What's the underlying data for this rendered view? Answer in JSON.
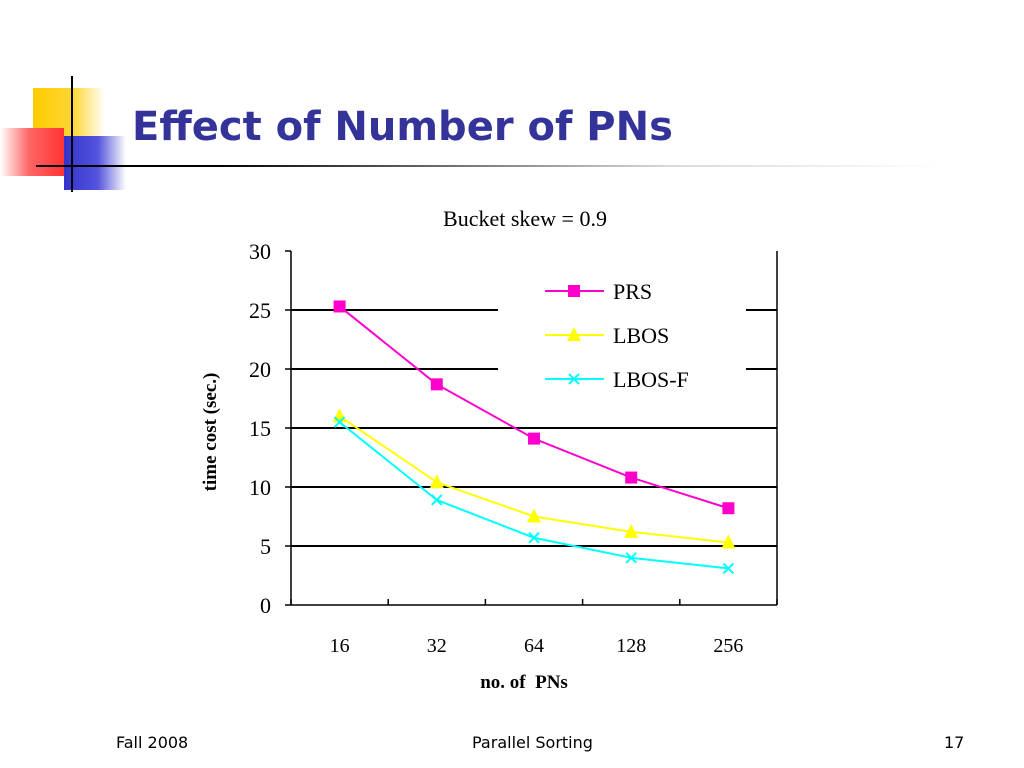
{
  "slide": {
    "title": "Effect of Number of PNs",
    "footer_left": "Fall 2008",
    "footer_center": "Parallel Sorting",
    "footer_right": "17"
  },
  "colors": {
    "title": "#333399",
    "deco_yellow": "#FFCC00",
    "deco_red": "#FF3333",
    "deco_blue": "#3333CC"
  },
  "chart_data": {
    "type": "line",
    "title": "Bucket skew = 0.9",
    "xlabel": "no. of  PNs",
    "ylabel": "time cost (sec.)",
    "categories": [
      "16",
      "32",
      "64",
      "128",
      "256"
    ],
    "ylim": [
      0,
      30
    ],
    "yticks": [
      "0",
      "5",
      "10",
      "15",
      "20",
      "25",
      "30"
    ],
    "grid": true,
    "legend_position": "top-right",
    "series": [
      {
        "name": "PRS",
        "color": "#FF00CC",
        "marker": "square",
        "values": [
          25.3,
          18.7,
          14.1,
          10.8,
          8.2
        ]
      },
      {
        "name": "LBOS",
        "color": "#FFFF00",
        "marker": "triangle",
        "values": [
          16.0,
          10.4,
          7.5,
          6.2,
          5.3
        ]
      },
      {
        "name": "LBOS-F",
        "color": "#00FFFF",
        "marker": "x",
        "values": [
          15.5,
          8.9,
          5.7,
          4.0,
          3.1
        ]
      }
    ]
  }
}
